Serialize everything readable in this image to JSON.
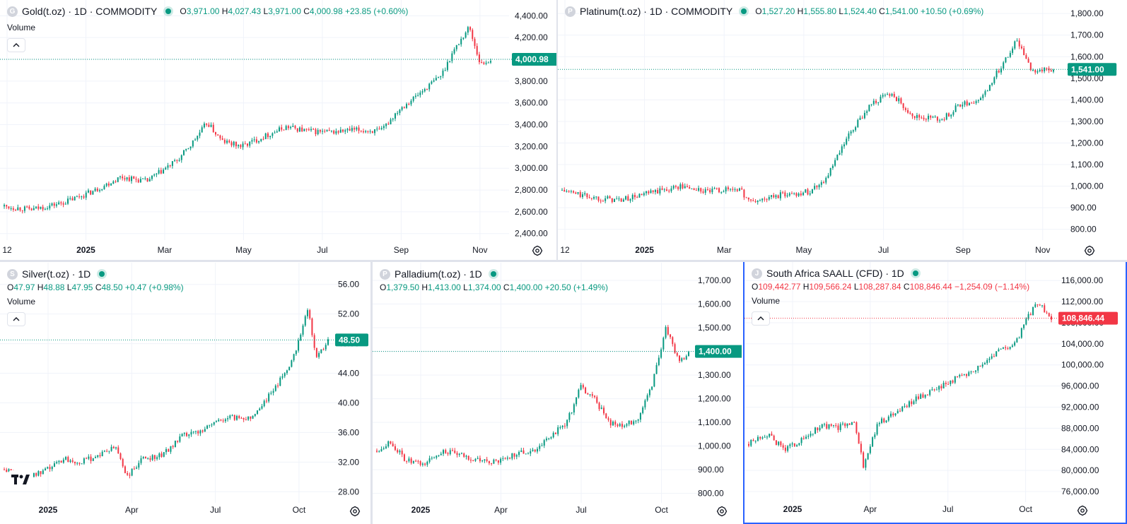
{
  "panes": [
    {
      "id": "gold",
      "logo_letter": "G",
      "title": "Gold(t.oz) · 1D · COMMODITY",
      "ohlc_inline": true,
      "ohlc": {
        "o": "3,971.00",
        "h": "4,027.43",
        "l": "3,971.00",
        "c": "4,000.98",
        "chg": "+23.85 (+0.60%)",
        "dir": "up"
      },
      "volume_label": "Volume",
      "price_tag": "4,000.98",
      "tag_color": "#089981",
      "chart_data": {
        "type": "candlestick",
        "x": [
          "2024-12-01",
          "2024-12-20",
          "2025-01-10",
          "2025-02-01",
          "2025-02-20",
          "2025-03-10",
          "2025-04-01",
          "2025-04-10",
          "2025-04-21",
          "2025-05-01",
          "2025-05-15",
          "2025-06-01",
          "2025-06-15",
          "2025-07-01",
          "2025-07-15",
          "2025-08-01",
          "2025-08-20",
          "2025-09-01",
          "2025-09-15",
          "2025-10-01",
          "2025-10-08",
          "2025-10-20",
          "2025-10-28",
          "2025-11-04"
        ],
        "close": [
          2650,
          2620,
          2680,
          2790,
          2920,
          2880,
          3080,
          3220,
          3420,
          3250,
          3200,
          3300,
          3380,
          3340,
          3330,
          3350,
          3340,
          3540,
          3680,
          3860,
          4050,
          4300,
          3950,
          4000
        ],
        "x_ticks": [
          "12",
          "2025",
          "Mar",
          "May",
          "Jul",
          "Sep",
          "Nov"
        ],
        "y_ticks": [
          "4,400.00",
          "4,200.00",
          "4,000.00",
          "3,800.00",
          "3,600.00",
          "3,400.00",
          "3,200.00",
          "3,000.00",
          "2,800.00",
          "2,600.00",
          "2,400.00"
        ],
        "ylim": [
          2340,
          4480
        ]
      }
    },
    {
      "id": "platinum",
      "logo_letter": "P",
      "title": "Platinum(t.oz) · 1D · COMMODITY",
      "ohlc_inline": true,
      "ohlc": {
        "o": "1,527.20",
        "h": "1,555.80",
        "l": "1,524.40",
        "c": "1,541.00",
        "chg": "+10.50 (+0.69%)",
        "dir": "up"
      },
      "volume_label": "",
      "price_tag": "1,541.00",
      "tag_color": "#089981",
      "chart_data": {
        "type": "candlestick",
        "x": [
          "2024-12-01",
          "2024-12-20",
          "2025-01-10",
          "2025-02-01",
          "2025-02-20",
          "2025-03-10",
          "2025-04-01",
          "2025-04-10",
          "2025-05-01",
          "2025-05-20",
          "2025-06-01",
          "2025-06-15",
          "2025-07-01",
          "2025-07-15",
          "2025-08-01",
          "2025-08-20",
          "2025-09-01",
          "2025-09-15",
          "2025-10-01",
          "2025-10-10",
          "2025-10-20",
          "2025-11-04"
        ],
        "close": [
          980,
          950,
          935,
          970,
          1000,
          975,
          990,
          925,
          960,
          975,
          1040,
          1220,
          1380,
          1430,
          1320,
          1310,
          1380,
          1400,
          1580,
          1680,
          1540,
          1541
        ],
        "x_ticks": [
          "12",
          "2025",
          "Mar",
          "May",
          "Jul",
          "Sep",
          "Nov"
        ],
        "y_ticks": [
          "1,800.00",
          "1,700.00",
          "1,600.00",
          "1,500.00",
          "1,400.00",
          "1,300.00",
          "1,200.00",
          "1,100.00",
          "1,000.00",
          "900.00",
          "800.00"
        ],
        "ylim": [
          750,
          1830
        ]
      }
    },
    {
      "id": "silver",
      "logo_letter": "S",
      "title": "Silver(t.oz) · 1D",
      "ohlc_inline": false,
      "ohlc": {
        "o": "47.97",
        "h": "48.88",
        "l": "47.95",
        "c": "48.50",
        "chg": "+0.47 (+0.98%)",
        "dir": "up"
      },
      "volume_label": "Volume",
      "price_tag": "48.50",
      "tag_color": "#089981",
      "chart_data": {
        "type": "candlestick",
        "x": [
          "2024-12-01",
          "2024-12-20",
          "2025-01-10",
          "2025-02-01",
          "2025-02-20",
          "2025-03-10",
          "2025-03-28",
          "2025-04-08",
          "2025-04-25",
          "2025-05-15",
          "2025-06-05",
          "2025-06-20",
          "2025-07-10",
          "2025-07-25",
          "2025-08-15",
          "2025-09-01",
          "2025-09-20",
          "2025-10-01",
          "2025-10-14",
          "2025-10-22",
          "2025-11-04"
        ],
        "close": [
          31,
          30,
          30.5,
          32.5,
          32,
          33,
          34,
          30,
          32.5,
          33,
          35.5,
          36,
          37.5,
          38,
          38,
          40.5,
          44,
          47,
          53,
          46,
          48.5
        ],
        "x_ticks": [
          "2025",
          "Apr",
          "Jul",
          "Oct"
        ],
        "y_ticks": [
          "56.00",
          "52.00",
          "48.00",
          "44.00",
          "40.00",
          "36.00",
          "32.00",
          "28.00"
        ],
        "ylim": [
          26.5,
          57.5
        ]
      }
    },
    {
      "id": "palladium",
      "logo_letter": "P",
      "title": "Palladium(t.oz) · 1D",
      "ohlc_inline": false,
      "ohlc": {
        "o": "1,379.50",
        "h": "1,413.00",
        "l": "1,374.00",
        "c": "1,400.00",
        "chg": "+20.50 (+1.49%)",
        "dir": "up"
      },
      "volume_label": "",
      "price_tag": "1,400.00",
      "tag_color": "#089981",
      "chart_data": {
        "type": "candlestick",
        "x": [
          "2024-12-01",
          "2024-12-15",
          "2025-01-01",
          "2025-01-20",
          "2025-02-10",
          "2025-03-01",
          "2025-03-20",
          "2025-04-10",
          "2025-05-01",
          "2025-05-20",
          "2025-06-10",
          "2025-06-25",
          "2025-07-10",
          "2025-07-25",
          "2025-08-10",
          "2025-08-25",
          "2025-09-10",
          "2025-09-25",
          "2025-10-10",
          "2025-10-25",
          "2025-11-04"
        ],
        "close": [
          980,
          1020,
          940,
          920,
          980,
          960,
          940,
          930,
          970,
          980,
          1050,
          1100,
          1250,
          1200,
          1100,
          1080,
          1120,
          1250,
          1500,
          1350,
          1400
        ],
        "x_ticks": [
          "2025",
          "Apr",
          "Jul",
          "Oct"
        ],
        "y_ticks": [
          "1,700.00",
          "1,600.00",
          "1,500.00",
          "1,400.00",
          "1,300.00",
          "1,200.00",
          "1,100.00",
          "1,000.00",
          "900.00",
          "800.00"
        ],
        "ylim": [
          760,
          1730
        ]
      }
    },
    {
      "id": "saall",
      "logo_letter": "J",
      "title": "South Africa SAALL (CFD) · 1D",
      "ohlc_inline": false,
      "ohlc": {
        "o": "109,442.77",
        "h": "109,566.24",
        "l": "108,287.84",
        "c": "108,846.44",
        "chg": "−1,254.09 (−1.14%)",
        "dir": "down"
      },
      "volume_label": "Volume",
      "price_tag": "108,846.44",
      "tag_color": "#f23645",
      "chart_data": {
        "type": "candlestick",
        "x": [
          "2024-12-01",
          "2024-12-20",
          "2025-01-10",
          "2025-02-01",
          "2025-02-20",
          "2025-03-10",
          "2025-03-28",
          "2025-04-08",
          "2025-04-25",
          "2025-05-15",
          "2025-06-05",
          "2025-06-25",
          "2025-07-15",
          "2025-08-05",
          "2025-08-25",
          "2025-09-10",
          "2025-09-25",
          "2025-10-10",
          "2025-10-20",
          "2025-11-04"
        ],
        "close": [
          85000,
          87000,
          84000,
          86000,
          88500,
          88000,
          89500,
          81000,
          89000,
          91000,
          93500,
          95000,
          97000,
          98500,
          101000,
          103000,
          104000,
          109500,
          112000,
          108846
        ],
        "x_ticks": [
          "2025",
          "Apr",
          "Jul",
          "Oct"
        ],
        "y_ticks": [
          "116,000.00",
          "112,000.00",
          "108,000.00",
          "104,000.00",
          "100,000.00",
          "96,000.00",
          "92,000.00",
          "88,000.00",
          "84,000.00",
          "80,000.00",
          "76,000.00"
        ],
        "ylim": [
          74000,
          117500
        ]
      }
    }
  ]
}
